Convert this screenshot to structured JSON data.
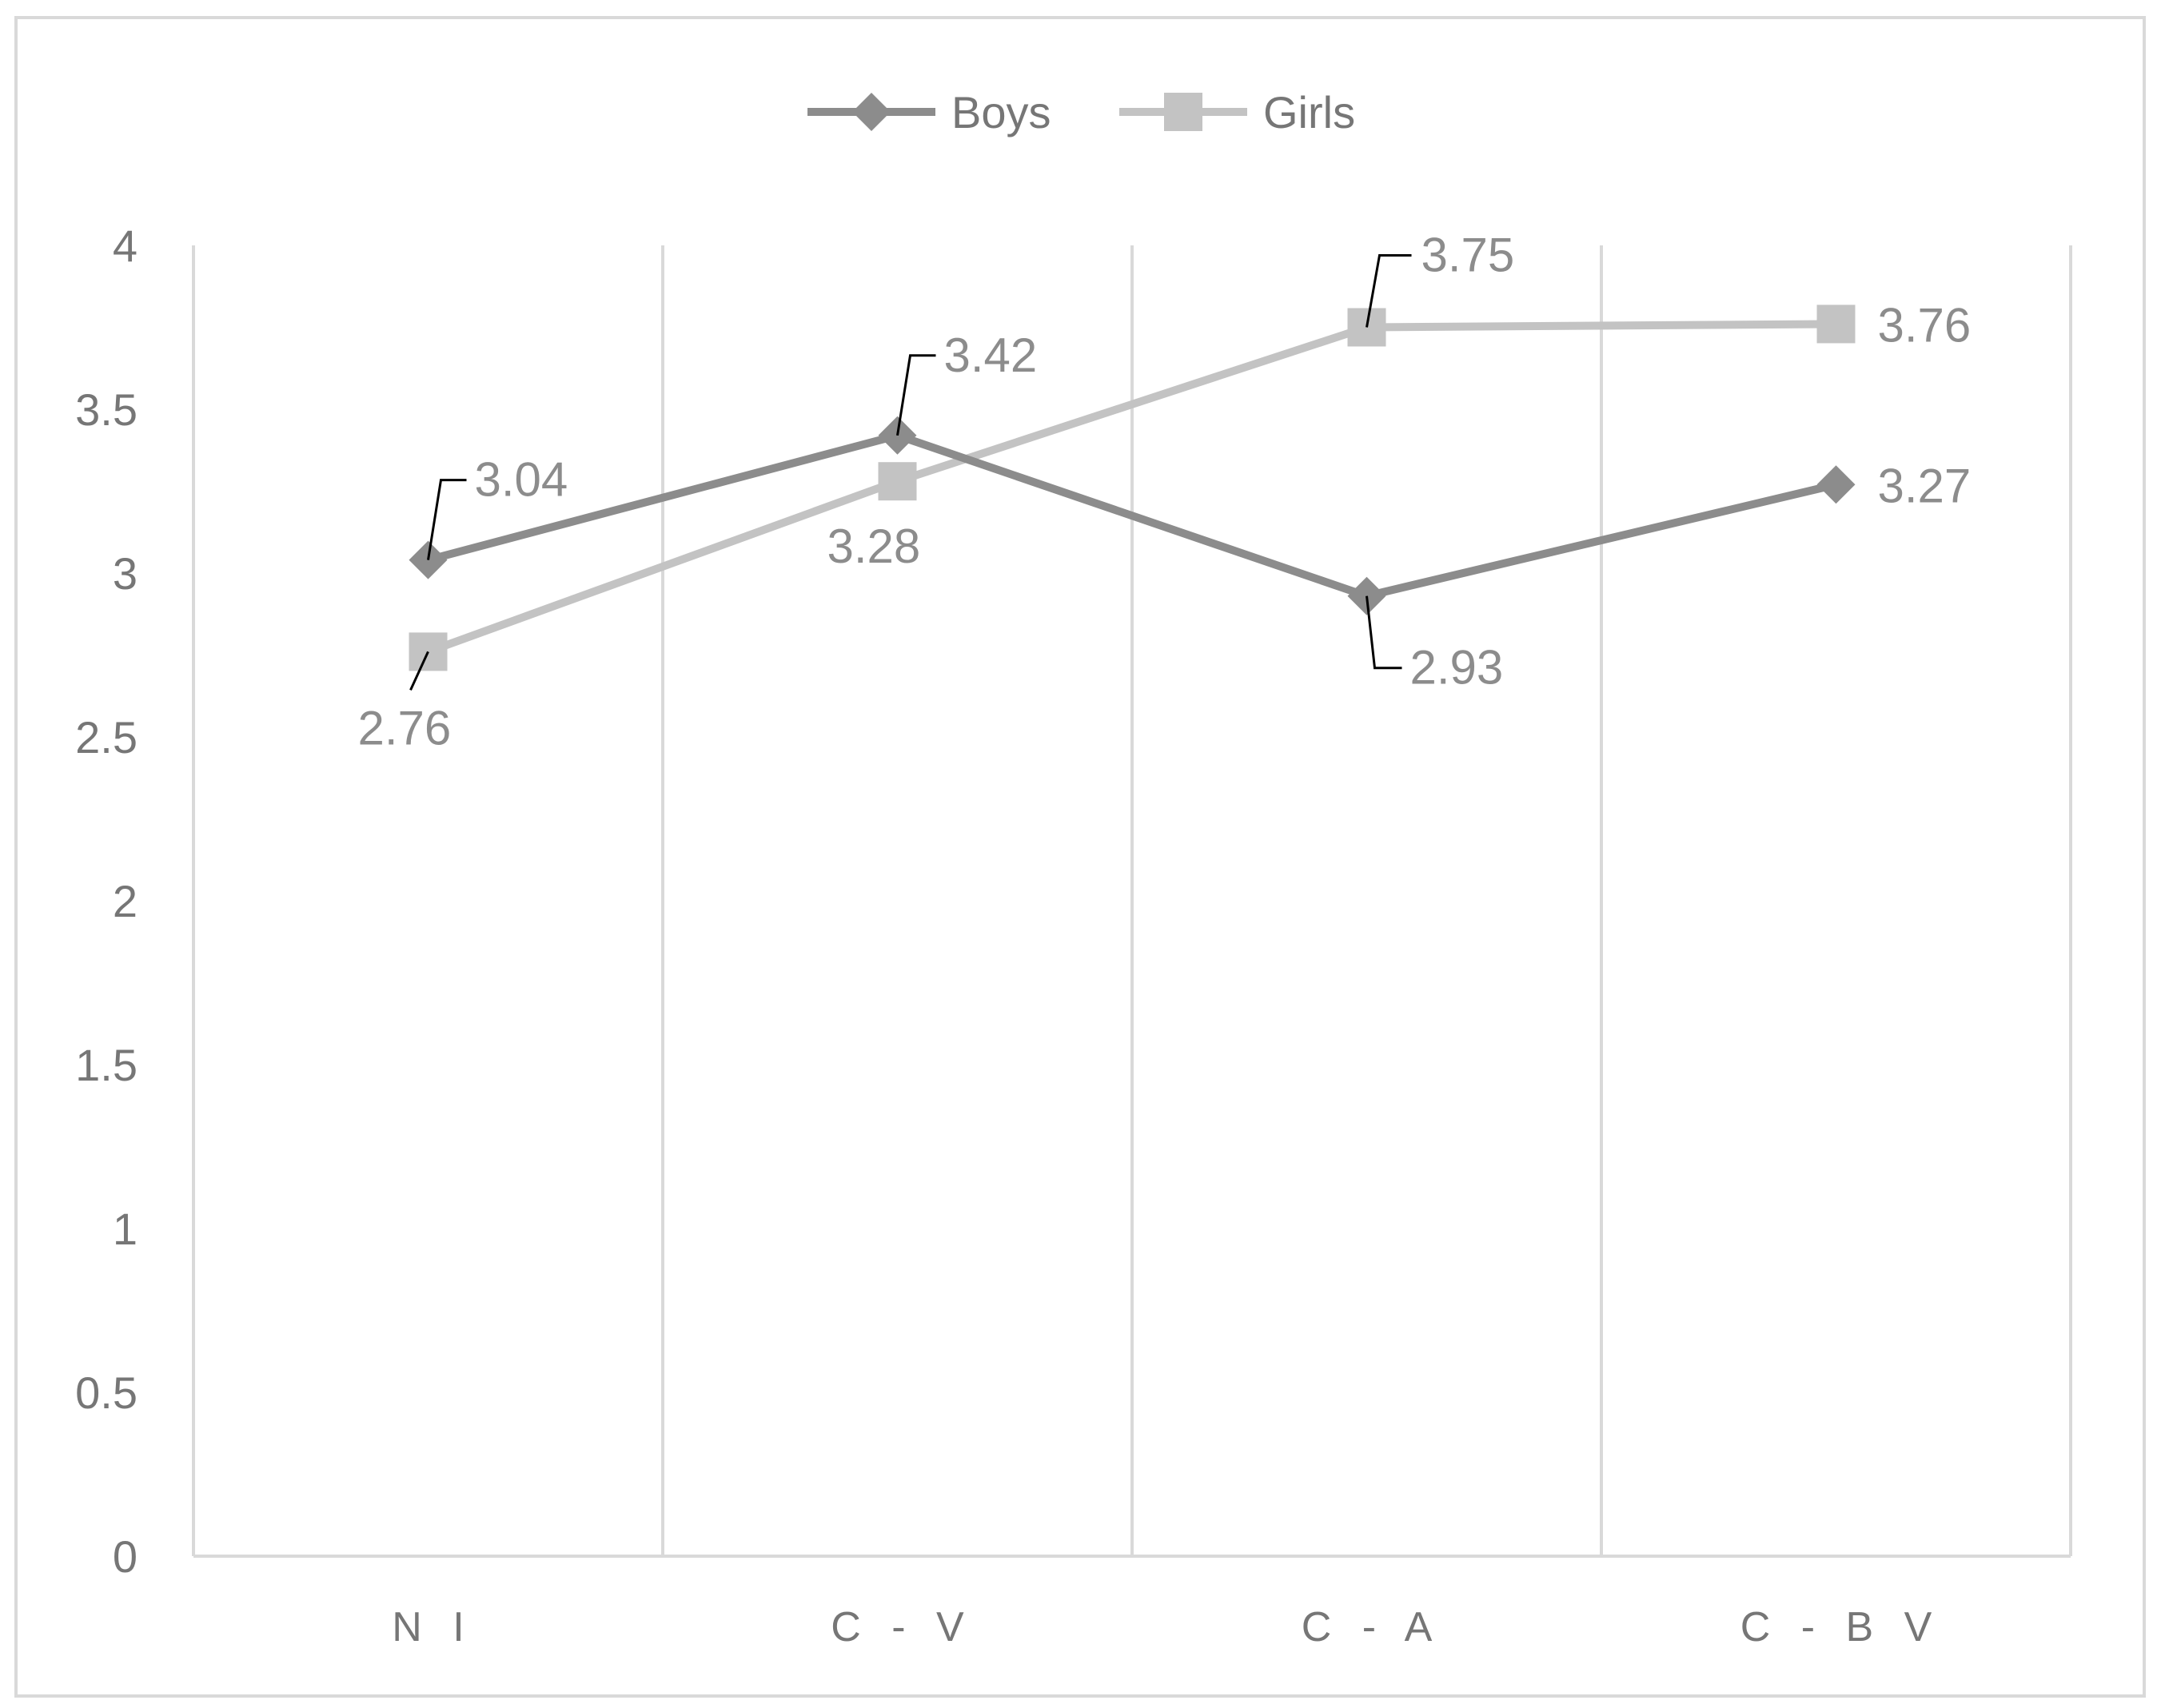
{
  "chart_data": {
    "type": "line",
    "title": "",
    "xlabel": "",
    "ylabel": "",
    "categories": [
      "N I",
      "C - V",
      "C - A",
      "C - B V"
    ],
    "ylim": [
      0,
      4
    ],
    "yticks": [
      0,
      0.5,
      1,
      1.5,
      2,
      2.5,
      3,
      3.5,
      4
    ],
    "ytick_labels": [
      "0",
      "0.5",
      "1",
      "1.5",
      "2",
      "2.5",
      "3",
      "3.5",
      "4"
    ],
    "grid": "vertical",
    "legend_position": "top-center",
    "series": [
      {
        "name": "Boys",
        "values": [
          3.04,
          3.42,
          2.93,
          3.27
        ],
        "labels": [
          "3.04",
          "3.42",
          "2.93",
          "3.27"
        ],
        "marker": "diamond",
        "color": "#8c8c8c"
      },
      {
        "name": "Girls",
        "values": [
          2.76,
          3.28,
          3.75,
          3.76
        ],
        "labels": [
          "2.76",
          "3.28",
          "3.75",
          "3.76"
        ],
        "marker": "square",
        "color": "#c3c3c3"
      }
    ]
  }
}
